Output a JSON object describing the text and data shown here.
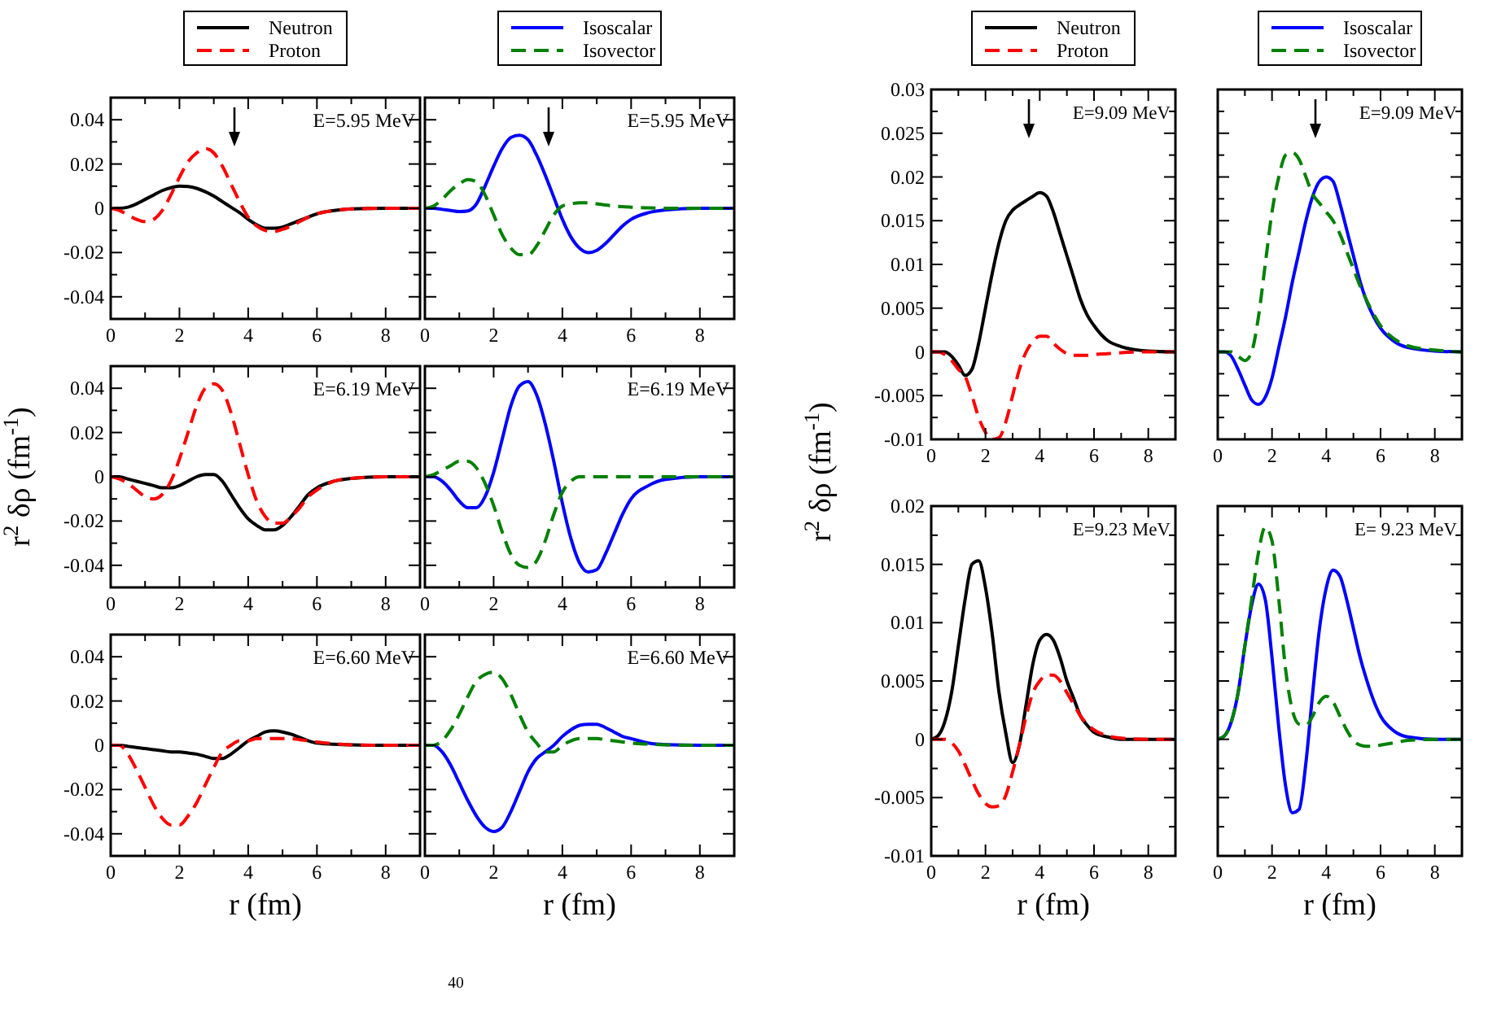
{
  "chart_data": [
    {
      "type": "line",
      "legend": "top",
      "xlim": [
        0,
        9
      ],
      "ylim": [
        -0.05,
        0.05
      ],
      "xticks": [
        0,
        {
          "value": 1,
          "label": null
        },
        2,
        {
          "value": 3,
          "label": null
        },
        4,
        {
          "value": 5,
          "label": null
        },
        6,
        {
          "value": 7,
          "label": null
        },
        8
      ],
      "yticks": [
        -0.04,
        {
          "value": -0.03,
          "label": null
        },
        -0.02,
        {
          "value": -0.01,
          "label": null
        },
        0,
        {
          "value": 0.01,
          "label": null
        },
        0.02,
        {
          "value": 0.03,
          "label": null
        },
        0.04
      ],
      "annotations": [
        "E=5.95 MeV"
      ],
      "marker": "none",
      "x": [
        0,
        0.25,
        0.5,
        0.75,
        1,
        1.25,
        1.5,
        1.75,
        2,
        2.25,
        2.5,
        2.75,
        3,
        3.25,
        3.5,
        3.75,
        4,
        4.25,
        4.5,
        4.75,
        5,
        5.25,
        5.5,
        5.75,
        6,
        6.5,
        7,
        8,
        9
      ],
      "series": [
        {
          "name": "Neutron",
          "color": "#000000",
          "line_style": "solid",
          "values": [
            0,
            0,
            0.0005,
            0.002,
            0.004,
            0.006,
            0.008,
            0.0093,
            0.01,
            0.0098,
            0.009,
            0.0075,
            0.0055,
            0.003,
            0.0005,
            -0.002,
            -0.005,
            -0.0075,
            -0.009,
            -0.009,
            -0.0085,
            -0.007,
            -0.0055,
            -0.004,
            -0.0025,
            -0.001,
            -0.0003,
            0,
            0
          ]
        },
        {
          "name": "Proton",
          "color": "#ff0000",
          "line_style": "dashed",
          "values": [
            0,
            -0.001,
            -0.003,
            -0.005,
            -0.006,
            -0.005,
            -0.001,
            0.006,
            0.014,
            0.021,
            0.025,
            0.027,
            0.025,
            0.019,
            0.011,
            0.003,
            -0.004,
            -0.008,
            -0.01,
            -0.0105,
            -0.0095,
            -0.008,
            -0.006,
            -0.004,
            -0.0025,
            -0.001,
            -0.0003,
            0,
            0
          ]
        }
      ]
    },
    {
      "type": "line",
      "legend": "top",
      "tick_labels": "x",
      "xlim": [
        0,
        9
      ],
      "ylim": [
        -0.05,
        0.05
      ],
      "xticks": [
        0,
        {
          "value": 1,
          "label": null
        },
        2,
        {
          "value": 3,
          "label": null
        },
        4,
        {
          "value": 5,
          "label": null
        },
        6,
        {
          "value": 7,
          "label": null
        },
        8
      ],
      "yticks": [
        {
          "value": -0.04,
          "label": null
        },
        {
          "value": -0.03,
          "label": null
        },
        {
          "value": -0.02,
          "label": null
        },
        {
          "value": -0.01,
          "label": null
        },
        {
          "value": 0,
          "label": null
        },
        {
          "value": 0.01,
          "label": null
        },
        {
          "value": 0.02,
          "label": null
        },
        {
          "value": 0.03,
          "label": null
        },
        {
          "value": 0.04,
          "label": null
        }
      ],
      "annotations": [
        "E=5.95 MeV"
      ],
      "marker": "none",
      "x": [
        0,
        0.25,
        0.5,
        0.75,
        1,
        1.25,
        1.5,
        1.75,
        2,
        2.25,
        2.5,
        2.75,
        3,
        3.25,
        3.5,
        3.75,
        4,
        4.25,
        4.5,
        4.75,
        5,
        5.25,
        5.5,
        5.75,
        6,
        6.5,
        7,
        8,
        9
      ],
      "series": [
        {
          "name": "Isoscalar",
          "color": "#0000ff",
          "line_style": "solid",
          "values": [
            0,
            0,
            -0.0005,
            -0.001,
            -0.0015,
            -0.0012,
            0.002,
            0.01,
            0.019,
            0.027,
            0.032,
            0.033,
            0.031,
            0.024,
            0.015,
            0.005,
            -0.005,
            -0.013,
            -0.018,
            -0.02,
            -0.019,
            -0.016,
            -0.012,
            -0.008,
            -0.005,
            -0.002,
            -0.0007,
            0,
            0
          ]
        },
        {
          "name": "Isovector",
          "color": "#008000",
          "line_style": "dashed",
          "values": [
            0,
            0.001,
            0.004,
            0.008,
            0.011,
            0.013,
            0.012,
            0.006,
            -0.003,
            -0.012,
            -0.018,
            -0.021,
            -0.021,
            -0.017,
            -0.01,
            -0.003,
            0.001,
            0.002,
            0.0025,
            0.0025,
            0.002,
            0.0015,
            0.001,
            0.0007,
            0.0005,
            0.0002,
            0,
            0,
            0
          ]
        }
      ]
    },
    {
      "type": "line",
      "ylabel": "r$^{2}$ δρ  (fm$^{-1}$)",
      "xlim": [
        0,
        9
      ],
      "ylim": [
        -0.05,
        0.05
      ],
      "xticks": [
        0,
        {
          "value": 1,
          "label": null
        },
        2,
        {
          "value": 3,
          "label": null
        },
        4,
        {
          "value": 5,
          "label": null
        },
        6,
        {
          "value": 7,
          "label": null
        },
        8
      ],
      "yticks": [
        -0.04,
        {
          "value": -0.03,
          "label": null
        },
        -0.02,
        {
          "value": -0.01,
          "label": null
        },
        0,
        {
          "value": 0.01,
          "label": null
        },
        0.02,
        {
          "value": 0.03,
          "label": null
        },
        0.04
      ],
      "annotations": [
        "E=6.19 MeV"
      ],
      "marker": "none",
      "x": [
        0,
        0.25,
        0.5,
        0.75,
        1,
        1.25,
        1.5,
        1.75,
        2,
        2.25,
        2.5,
        2.75,
        3,
        3.25,
        3.5,
        3.75,
        4,
        4.25,
        4.5,
        4.75,
        5,
        5.25,
        5.5,
        5.75,
        6,
        6.5,
        7,
        8,
        9
      ],
      "series": [
        {
          "color": "#000000",
          "line_style": "solid",
          "values": [
            0,
            0,
            -0.001,
            -0.002,
            -0.003,
            -0.004,
            -0.005,
            -0.005,
            -0.004,
            -0.002,
            0,
            0.001,
            0.001,
            -0.002,
            -0.008,
            -0.014,
            -0.019,
            -0.022,
            -0.024,
            -0.024,
            -0.022,
            -0.018,
            -0.013,
            -0.008,
            -0.005,
            -0.002,
            -0.0007,
            0,
            0
          ]
        },
        {
          "color": "#ff0000",
          "line_style": "dashed",
          "values": [
            0,
            -0.001,
            -0.003,
            -0.006,
            -0.009,
            -0.01,
            -0.008,
            -0.002,
            0.008,
            0.02,
            0.032,
            0.04,
            0.042,
            0.039,
            0.029,
            0.015,
            0.001,
            -0.011,
            -0.018,
            -0.021,
            -0.021,
            -0.018,
            -0.014,
            -0.009,
            -0.006,
            -0.002,
            -0.0007,
            0,
            0
          ]
        }
      ]
    },
    {
      "type": "line",
      "tick_labels": "x",
      "xlim": [
        0,
        9
      ],
      "ylim": [
        -0.05,
        0.05
      ],
      "xticks": [
        0,
        {
          "value": 1,
          "label": null
        },
        2,
        {
          "value": 3,
          "label": null
        },
        4,
        {
          "value": 5,
          "label": null
        },
        6,
        {
          "value": 7,
          "label": null
        },
        8
      ],
      "yticks": [
        {
          "value": -0.04,
          "label": null
        },
        {
          "value": -0.03,
          "label": null
        },
        {
          "value": -0.02,
          "label": null
        },
        {
          "value": -0.01,
          "label": null
        },
        {
          "value": 0,
          "label": null
        },
        {
          "value": 0.01,
          "label": null
        },
        {
          "value": 0.02,
          "label": null
        },
        {
          "value": 0.03,
          "label": null
        },
        {
          "value": 0.04,
          "label": null
        }
      ],
      "annotations": [
        "E=6.19 MeV"
      ],
      "marker": "none",
      "x": [
        0,
        0.25,
        0.5,
        0.75,
        1,
        1.25,
        1.5,
        1.75,
        2,
        2.25,
        2.5,
        2.75,
        3,
        3.25,
        3.5,
        3.75,
        4,
        4.25,
        4.5,
        4.75,
        5,
        5.25,
        5.5,
        5.75,
        6,
        6.5,
        7,
        8,
        9
      ],
      "series": [
        {
          "color": "#0000ff",
          "line_style": "solid",
          "values": [
            0,
            0,
            -0.002,
            -0.006,
            -0.011,
            -0.014,
            -0.014,
            -0.009,
            0.002,
            0.017,
            0.032,
            0.041,
            0.043,
            0.037,
            0.024,
            0.007,
            -0.012,
            -0.028,
            -0.039,
            -0.043,
            -0.042,
            -0.035,
            -0.026,
            -0.017,
            -0.01,
            -0.004,
            -0.0012,
            0,
            0
          ]
        },
        {
          "color": "#008000",
          "line_style": "dashed",
          "values": [
            0,
            0.001,
            0.003,
            0.005,
            0.007,
            0.007,
            0.004,
            -0.003,
            -0.013,
            -0.025,
            -0.035,
            -0.04,
            -0.041,
            -0.038,
            -0.029,
            -0.017,
            -0.007,
            -0.002,
            0,
            0,
            0,
            0,
            0,
            0,
            0,
            0,
            0,
            0,
            0
          ]
        }
      ]
    },
    {
      "type": "line",
      "xlabel": "r (fm)",
      "xlim": [
        0,
        9
      ],
      "ylim": [
        -0.05,
        0.05
      ],
      "xticks": [
        0,
        {
          "value": 1,
          "label": null
        },
        2,
        {
          "value": 3,
          "label": null
        },
        4,
        {
          "value": 5,
          "label": null
        },
        6,
        {
          "value": 7,
          "label": null
        },
        8
      ],
      "yticks": [
        -0.04,
        {
          "value": -0.03,
          "label": null
        },
        -0.02,
        {
          "value": -0.01,
          "label": null
        },
        0,
        {
          "value": 0.01,
          "label": null
        },
        0.02,
        {
          "value": 0.03,
          "label": null
        },
        0.04
      ],
      "annotations": [
        "E=6.60 MeV",
        "$^{40}$"
      ],
      "marker": "none",
      "x": [
        0,
        0.25,
        0.5,
        0.75,
        1,
        1.25,
        1.5,
        1.75,
        2,
        2.25,
        2.5,
        2.75,
        3,
        3.25,
        3.5,
        3.75,
        4,
        4.25,
        4.5,
        4.75,
        5,
        5.25,
        5.5,
        5.75,
        6,
        6.5,
        7,
        8,
        9
      ],
      "series": [
        {
          "color": "#000000",
          "line_style": "solid",
          "values": [
            0,
            0,
            -0.0005,
            -0.001,
            -0.0015,
            -0.002,
            -0.0025,
            -0.003,
            -0.003,
            -0.0035,
            -0.004,
            -0.005,
            -0.006,
            -0.006,
            -0.004,
            -0.001,
            0.002,
            0.004,
            0.006,
            0.0065,
            0.006,
            0.005,
            0.0035,
            0.002,
            0.001,
            0.0005,
            0.0002,
            0,
            0
          ]
        },
        {
          "color": "#ff0000",
          "line_style": "dashed",
          "values": [
            0,
            0,
            -0.004,
            -0.011,
            -0.019,
            -0.027,
            -0.033,
            -0.036,
            -0.036,
            -0.032,
            -0.026,
            -0.018,
            -0.01,
            -0.003,
            0,
            0.002,
            0.002,
            0.003,
            0.003,
            0.003,
            0.003,
            0.003,
            0.0025,
            0.002,
            0.0015,
            0.0007,
            0.0002,
            0,
            0
          ]
        }
      ]
    },
    {
      "type": "line",
      "xlabel": "r (fm)",
      "tick_labels": "x",
      "xlim": [
        0,
        9
      ],
      "ylim": [
        -0.05,
        0.05
      ],
      "xticks": [
        0,
        {
          "value": 1,
          "label": null
        },
        2,
        {
          "value": 3,
          "label": null
        },
        4,
        {
          "value": 5,
          "label": null
        },
        6,
        {
          "value": 7,
          "label": null
        },
        8
      ],
      "yticks": [
        {
          "value": -0.04,
          "label": null
        },
        {
          "value": -0.03,
          "label": null
        },
        {
          "value": -0.02,
          "label": null
        },
        {
          "value": -0.01,
          "label": null
        },
        {
          "value": 0,
          "label": null
        },
        {
          "value": 0.01,
          "label": null
        },
        {
          "value": 0.02,
          "label": null
        },
        {
          "value": 0.03,
          "label": null
        },
        {
          "value": 0.04,
          "label": null
        }
      ],
      "annotations": [
        "E=6.60 MeV"
      ],
      "marker": "none",
      "x": [
        0,
        0.25,
        0.5,
        0.75,
        1,
        1.25,
        1.5,
        1.75,
        2,
        2.25,
        2.5,
        2.75,
        3,
        3.25,
        3.5,
        3.75,
        4,
        4.25,
        4.5,
        4.75,
        5,
        5.25,
        5.5,
        5.75,
        6,
        6.5,
        7,
        8,
        9
      ],
      "series": [
        {
          "color": "#0000ff",
          "line_style": "solid",
          "values": [
            0,
            0,
            -0.003,
            -0.009,
            -0.017,
            -0.025,
            -0.032,
            -0.037,
            -0.039,
            -0.037,
            -0.03,
            -0.021,
            -0.012,
            -0.006,
            -0.003,
            0,
            0.004,
            0.007,
            0.009,
            0.0095,
            0.0095,
            0.008,
            0.006,
            0.004,
            0.003,
            0.001,
            0.0003,
            0,
            0
          ]
        },
        {
          "color": "#008000",
          "line_style": "dashed",
          "values": [
            0,
            0,
            0.002,
            0.007,
            0.014,
            0.022,
            0.029,
            0.032,
            0.033,
            0.03,
            0.023,
            0.014,
            0.006,
            0.001,
            -0.003,
            -0.003,
            0,
            0.002,
            0.003,
            0.003,
            0.003,
            0.0025,
            0.002,
            0.0015,
            0.001,
            0.0005,
            0.0002,
            0,
            0
          ]
        }
      ]
    },
    {
      "type": "line",
      "legend": "top",
      "ylabel": "r$^{2}$ δρ  (fm$^{-1}$)",
      "xlim": [
        0,
        9
      ],
      "ylim": [
        -0.01,
        0.03
      ],
      "xticks": [
        0,
        {
          "value": 1,
          "label": null
        },
        2,
        {
          "value": 3,
          "label": null
        },
        4,
        {
          "value": 5,
          "label": null
        },
        6,
        {
          "value": 7,
          "label": null
        },
        8
      ],
      "yticks": [
        -0.01,
        {
          "value": -0.0075,
          "label": null
        },
        -0.005,
        {
          "value": -0.0025,
          "label": null
        },
        0,
        {
          "value": 0.0025,
          "label": null
        },
        0.005,
        {
          "value": 0.0075,
          "label": null
        },
        0.01,
        {
          "value": 0.0125,
          "label": null
        },
        0.015,
        {
          "value": 0.0175,
          "label": null
        },
        0.02,
        {
          "value": 0.0225,
          "label": null
        },
        0.025,
        {
          "value": 0.0275,
          "label": null
        },
        0.03
      ],
      "annotations": [
        "E=9.09 MeV"
      ],
      "marker": "none",
      "x": [
        0,
        0.25,
        0.5,
        0.75,
        1,
        1.25,
        1.5,
        1.75,
        2,
        2.25,
        2.5,
        2.75,
        3,
        3.25,
        3.5,
        3.75,
        4,
        4.25,
        4.5,
        4.75,
        5,
        5.25,
        5.5,
        5.75,
        6,
        6.5,
        7,
        8,
        9
      ],
      "series": [
        {
          "name": "Neutron",
          "color": "#000000",
          "line_style": "solid",
          "values": [
            0,
            0,
            0,
            -0.0005,
            -0.0015,
            -0.0027,
            -0.002,
            0.001,
            0.005,
            0.009,
            0.0125,
            0.015,
            0.0162,
            0.0168,
            0.0173,
            0.0178,
            0.0182,
            0.0178,
            0.016,
            0.0135,
            0.011,
            0.0085,
            0.006,
            0.0042,
            0.003,
            0.0013,
            0.0006,
            0.0001,
            0
          ]
        },
        {
          "name": "Proton",
          "color": "#ff0000",
          "line_style": "dashed",
          "values": [
            0,
            0,
            -0.0003,
            -0.001,
            -0.002,
            -0.0028,
            -0.005,
            -0.0075,
            -0.0092,
            -0.01,
            -0.0098,
            -0.008,
            -0.005,
            -0.002,
            0,
            0.0012,
            0.0018,
            0.0018,
            0.001,
            0.0003,
            -0.0002,
            -0.0004,
            -0.0004,
            -0.0004,
            -0.0003,
            -0.0002,
            -0.0001,
            0,
            0
          ]
        }
      ]
    },
    {
      "type": "line",
      "legend": "top",
      "tick_labels": "x",
      "xlim": [
        0,
        9
      ],
      "ylim": [
        -0.01,
        0.03
      ],
      "xticks": [
        0,
        {
          "value": 1,
          "label": null
        },
        2,
        {
          "value": 3,
          "label": null
        },
        4,
        {
          "value": 5,
          "label": null
        },
        6,
        {
          "value": 7,
          "label": null
        },
        8
      ],
      "yticks": [
        {
          "value": -0.01,
          "label": null
        },
        {
          "value": -0.0075,
          "label": null
        },
        {
          "value": -0.005,
          "label": null
        },
        {
          "value": -0.0025,
          "label": null
        },
        {
          "value": 0,
          "label": null
        },
        {
          "value": 0.0025,
          "label": null
        },
        {
          "value": 0.005,
          "label": null
        },
        {
          "value": 0.0075,
          "label": null
        },
        {
          "value": 0.01,
          "label": null
        },
        {
          "value": 0.0125,
          "label": null
        },
        {
          "value": 0.015,
          "label": null
        },
        {
          "value": 0.0175,
          "label": null
        },
        {
          "value": 0.02,
          "label": null
        },
        {
          "value": 0.0225,
          "label": null
        },
        {
          "value": 0.025,
          "label": null
        },
        {
          "value": 0.0275,
          "label": null
        },
        {
          "value": 0.03,
          "label": null
        }
      ],
      "annotations": [
        "E=9.09 MeV"
      ],
      "marker": "none",
      "x": [
        0,
        0.25,
        0.5,
        0.75,
        1,
        1.25,
        1.5,
        1.75,
        2,
        2.25,
        2.5,
        2.75,
        3,
        3.25,
        3.5,
        3.75,
        4,
        4.25,
        4.5,
        4.75,
        5,
        5.25,
        5.5,
        5.75,
        6,
        6.5,
        7,
        8,
        9
      ],
      "series": [
        {
          "name": "Isoscalar",
          "color": "#0000ff",
          "line_style": "solid",
          "values": [
            0,
            0,
            -0.0005,
            -0.002,
            -0.0038,
            -0.0055,
            -0.006,
            -0.0052,
            -0.003,
            0.0005,
            0.004,
            0.008,
            0.0115,
            0.015,
            0.0178,
            0.0195,
            0.02,
            0.0195,
            0.017,
            0.014,
            0.011,
            0.008,
            0.0057,
            0.004,
            0.0027,
            0.0012,
            0.0005,
            0.0001,
            0
          ]
        },
        {
          "name": "Isovector",
          "color": "#008000",
          "line_style": "dashed",
          "values": [
            0,
            0,
            0,
            -0.0005,
            -0.001,
            0,
            0.004,
            0.01,
            0.016,
            0.02,
            0.0225,
            0.0228,
            0.022,
            0.02,
            0.018,
            0.017,
            0.016,
            0.015,
            0.0135,
            0.0115,
            0.0095,
            0.0075,
            0.0058,
            0.0043,
            0.003,
            0.0015,
            0.0007,
            0.0002,
            0
          ]
        }
      ]
    },
    {
      "type": "line",
      "xlabel": "r (fm)",
      "xlim": [
        0,
        9
      ],
      "ylim": [
        -0.01,
        0.02
      ],
      "xticks": [
        0,
        {
          "value": 1,
          "label": null
        },
        2,
        {
          "value": 3,
          "label": null
        },
        4,
        {
          "value": 5,
          "label": null
        },
        6,
        {
          "value": 7,
          "label": null
        },
        8
      ],
      "yticks": [
        -0.01,
        {
          "value": -0.0075,
          "label": null
        },
        -0.005,
        {
          "value": -0.0025,
          "label": null
        },
        0,
        {
          "value": 0.0025,
          "label": null
        },
        0.005,
        {
          "value": 0.0075,
          "label": null
        },
        0.01,
        {
          "value": 0.0125,
          "label": null
        },
        0.015,
        {
          "value": 0.0175,
          "label": null
        },
        0.02
      ],
      "annotations": [
        "E=9.23 MeV"
      ],
      "marker": "none",
      "x": [
        0,
        0.25,
        0.5,
        0.75,
        1,
        1.25,
        1.5,
        1.75,
        2,
        2.25,
        2.5,
        2.75,
        3,
        3.25,
        3.5,
        3.75,
        4,
        4.25,
        4.5,
        4.75,
        5,
        5.25,
        5.5,
        5.75,
        6,
        6.5,
        7,
        8,
        9
      ],
      "series": [
        {
          "color": "#000000",
          "line_style": "solid",
          "values": [
            0,
            0.0003,
            0.0015,
            0.004,
            0.008,
            0.012,
            0.015,
            0.0153,
            0.013,
            0.009,
            0.004,
            0.0005,
            -0.002,
            -0.0005,
            0.003,
            0.0065,
            0.0085,
            0.009,
            0.0085,
            0.007,
            0.005,
            0.0035,
            0.002,
            0.0012,
            0.0006,
            0.0002,
            0,
            0,
            0
          ]
        },
        {
          "color": "#ff0000",
          "line_style": "dashed",
          "values": [
            0,
            0,
            0,
            -0.0003,
            -0.001,
            -0.0022,
            -0.0035,
            -0.0047,
            -0.0055,
            -0.0058,
            -0.0057,
            -0.0048,
            -0.0028,
            -0.0005,
            0.002,
            0.004,
            0.005,
            0.0055,
            0.0055,
            0.005,
            0.004,
            0.003,
            0.002,
            0.0013,
            0.0008,
            0.0003,
            0.0001,
            0,
            0
          ]
        }
      ]
    },
    {
      "type": "line",
      "xlabel": "r (fm)",
      "tick_labels": "x",
      "xlim": [
        0,
        9
      ],
      "ylim": [
        -0.01,
        0.02
      ],
      "xticks": [
        0,
        {
          "value": 1,
          "label": null
        },
        2,
        {
          "value": 3,
          "label": null
        },
        4,
        {
          "value": 5,
          "label": null
        },
        6,
        {
          "value": 7,
          "label": null
        },
        8
      ],
      "yticks": [
        {
          "value": -0.01,
          "label": null
        },
        {
          "value": -0.0075,
          "label": null
        },
        {
          "value": -0.005,
          "label": null
        },
        {
          "value": -0.0025,
          "label": null
        },
        {
          "value": 0,
          "label": null
        },
        {
          "value": 0.0025,
          "label": null
        },
        {
          "value": 0.005,
          "label": null
        },
        {
          "value": 0.0075,
          "label": null
        },
        {
          "value": 0.01,
          "label": null
        },
        {
          "value": 0.0125,
          "label": null
        },
        {
          "value": 0.015,
          "label": null
        },
        {
          "value": 0.0175,
          "label": null
        },
        {
          "value": 0.02,
          "label": null
        }
      ],
      "annotations": [
        "E= 9.23 MeV"
      ],
      "marker": "none",
      "x": [
        0,
        0.25,
        0.5,
        0.75,
        1,
        1.25,
        1.5,
        1.75,
        2,
        2.25,
        2.5,
        2.75,
        3,
        3.25,
        3.5,
        3.75,
        4,
        4.25,
        4.5,
        4.75,
        5,
        5.25,
        5.5,
        5.75,
        6,
        6.5,
        7,
        8,
        9
      ],
      "series": [
        {
          "color": "#0000ff",
          "line_style": "solid",
          "values": [
            0,
            0.0003,
            0.0015,
            0.004,
            0.008,
            0.0115,
            0.0133,
            0.012,
            0.007,
            0.001,
            -0.004,
            -0.0063,
            -0.006,
            -0.002,
            0.004,
            0.0095,
            0.013,
            0.0145,
            0.014,
            0.012,
            0.0095,
            0.007,
            0.005,
            0.0033,
            0.002,
            0.0007,
            0.0002,
            0,
            0
          ]
        },
        {
          "color": "#008000",
          "line_style": "dashed",
          "values": [
            0,
            0.0003,
            0.0015,
            0.004,
            0.008,
            0.012,
            0.016,
            0.0182,
            0.017,
            0.012,
            0.006,
            0.0025,
            0.0013,
            0.0012,
            0.002,
            0.0032,
            0.0037,
            0.0032,
            0.002,
            0.0008,
            -0.0001,
            -0.0005,
            -0.0006,
            -0.0006,
            -0.0005,
            -0.0003,
            -0.0001,
            0,
            0
          ]
        }
      ]
    }
  ]
}
